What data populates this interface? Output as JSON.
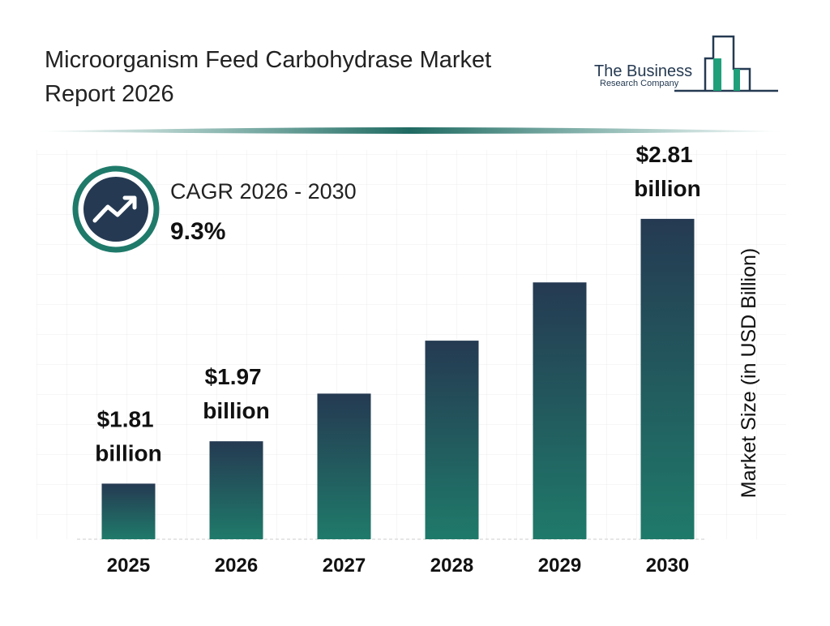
{
  "chart_data": {
    "type": "bar",
    "title": "Microorganism Feed Carbohydrase Market Report 2026",
    "categories": [
      "2025",
      "2026",
      "2027",
      "2028",
      "2029",
      "2030"
    ],
    "values": [
      1.81,
      1.97,
      2.15,
      2.35,
      2.57,
      2.81
    ],
    "value_labels": [
      "$1.81 billion",
      "$1.97 billion",
      null,
      null,
      null,
      "$2.81 billion"
    ],
    "color": [
      "#253a52",
      "#1f7a6a"
    ],
    "ylim": [
      1.6,
      3.07
    ],
    "y_label": "Market Size (in USD Billion)",
    "cagr_label": "CAGR 2026 - 2030",
    "cagr_value": "9.3%"
  },
  "logo": {
    "line1": "The Business",
    "line2": "Research Company"
  }
}
